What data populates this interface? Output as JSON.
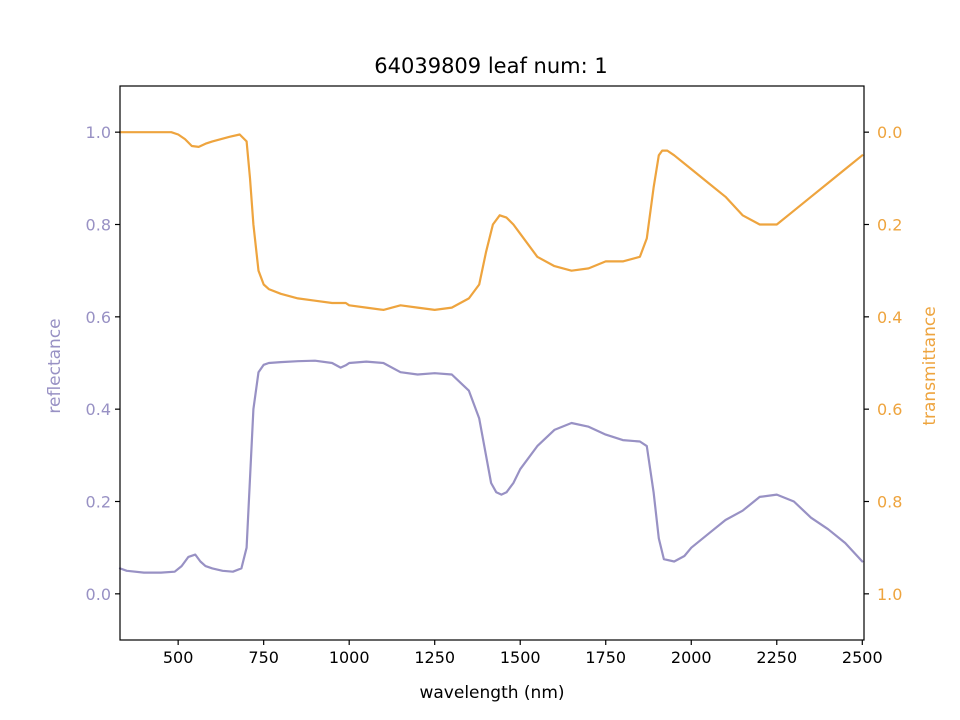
{
  "chart_data": {
    "type": "line",
    "title": "64039809 leaf num: 1",
    "xlabel": "wavelength (nm)",
    "ylabel_left": "reflectance",
    "ylabel_right": "transmittance",
    "xlim": [
      330,
      2505
    ],
    "ylim_left": [
      -0.1,
      1.1
    ],
    "ylim_right": [
      1.1,
      -0.1
    ],
    "right_axis_inverted": true,
    "grid": false,
    "x_ticks": [
      500,
      750,
      1000,
      1250,
      1500,
      1750,
      2000,
      2250,
      2500
    ],
    "x_tick_labels": [
      "500",
      "750",
      "1000",
      "1250",
      "1500",
      "1750",
      "2000",
      "2250",
      "2500"
    ],
    "left_ticks": [
      0.0,
      0.2,
      0.4,
      0.6,
      0.8,
      1.0
    ],
    "left_tick_labels": [
      "0.0",
      "0.2",
      "0.4",
      "0.6",
      "0.8",
      "1.0"
    ],
    "right_ticks": [
      0.0,
      0.2,
      0.4,
      0.6,
      0.8,
      1.0
    ],
    "right_tick_labels": [
      "0.0",
      "0.2",
      "0.4",
      "0.6",
      "0.8",
      "1.0"
    ],
    "series": [
      {
        "axis": "left",
        "color": "#9891c4",
        "x": [
          330,
          350,
          400,
          450,
          490,
          510,
          530,
          550,
          565,
          580,
          600,
          630,
          660,
          685,
          700,
          710,
          720,
          735,
          750,
          765,
          800,
          850,
          900,
          950,
          975,
          990,
          1000,
          1050,
          1100,
          1150,
          1200,
          1250,
          1300,
          1350,
          1380,
          1400,
          1415,
          1430,
          1445,
          1460,
          1480,
          1500,
          1550,
          1600,
          1650,
          1700,
          1750,
          1800,
          1850,
          1870,
          1890,
          1905,
          1920,
          1950,
          1980,
          2000,
          2050,
          2100,
          2150,
          2200,
          2250,
          2300,
          2350,
          2400,
          2450,
          2500
        ],
        "y": [
          0.055,
          0.05,
          0.046,
          0.046,
          0.048,
          0.06,
          0.08,
          0.085,
          0.07,
          0.06,
          0.055,
          0.05,
          0.048,
          0.055,
          0.1,
          0.25,
          0.4,
          0.48,
          0.496,
          0.5,
          0.502,
          0.504,
          0.505,
          0.5,
          0.49,
          0.495,
          0.5,
          0.503,
          0.5,
          0.48,
          0.475,
          0.478,
          0.475,
          0.44,
          0.38,
          0.3,
          0.24,
          0.22,
          0.215,
          0.22,
          0.24,
          0.27,
          0.32,
          0.355,
          0.37,
          0.362,
          0.345,
          0.333,
          0.33,
          0.32,
          0.22,
          0.12,
          0.075,
          0.07,
          0.082,
          0.1,
          0.13,
          0.16,
          0.18,
          0.21,
          0.215,
          0.2,
          0.165,
          0.14,
          0.11,
          0.07
        ]
      },
      {
        "axis": "right",
        "color": "#eea43e",
        "x": [
          330,
          350,
          400,
          450,
          480,
          500,
          520,
          540,
          560,
          580,
          600,
          650,
          680,
          700,
          710,
          720,
          735,
          750,
          765,
          800,
          850,
          900,
          950,
          975,
          990,
          1000,
          1050,
          1100,
          1150,
          1200,
          1250,
          1300,
          1350,
          1380,
          1400,
          1420,
          1440,
          1460,
          1480,
          1500,
          1550,
          1600,
          1650,
          1700,
          1750,
          1800,
          1850,
          1870,
          1890,
          1905,
          1915,
          1930,
          1950,
          2000,
          2050,
          2100,
          2150,
          2200,
          2250,
          2300,
          2350,
          2400,
          2450,
          2500
        ],
        "y": [
          0.0,
          0.0,
          0.0,
          0.0,
          0.0,
          0.005,
          0.015,
          0.03,
          0.032,
          0.025,
          0.02,
          0.01,
          0.005,
          0.02,
          0.1,
          0.2,
          0.3,
          0.33,
          0.34,
          0.35,
          0.36,
          0.365,
          0.37,
          0.37,
          0.37,
          0.375,
          0.38,
          0.385,
          0.375,
          0.38,
          0.385,
          0.38,
          0.36,
          0.33,
          0.26,
          0.2,
          0.18,
          0.185,
          0.2,
          0.22,
          0.27,
          0.29,
          0.3,
          0.295,
          0.28,
          0.28,
          0.27,
          0.23,
          0.12,
          0.05,
          0.04,
          0.04,
          0.05,
          0.08,
          0.11,
          0.14,
          0.18,
          0.2,
          0.2,
          0.17,
          0.14,
          0.11,
          0.08,
          0.05
        ]
      }
    ]
  }
}
